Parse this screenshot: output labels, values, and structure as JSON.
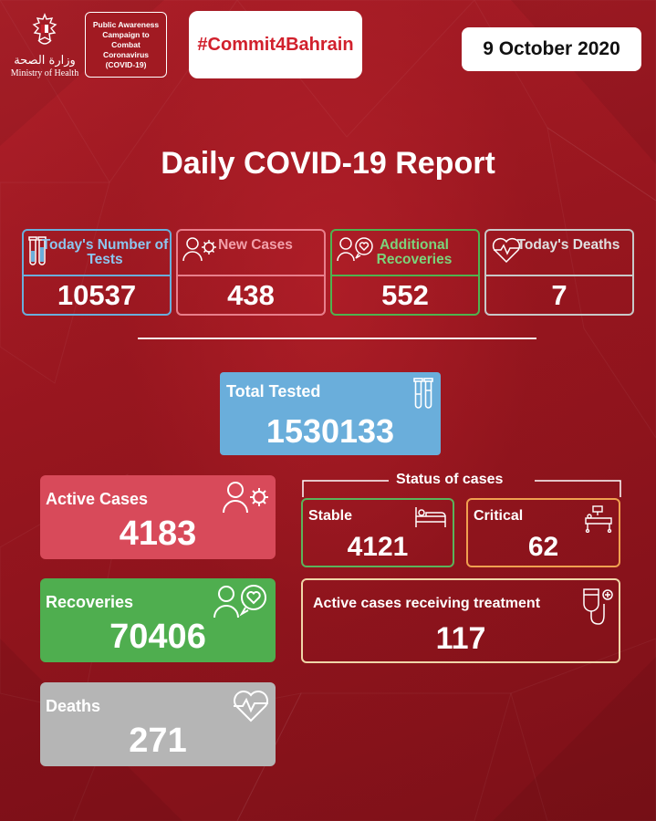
{
  "header": {
    "ministry_arabic": "وزارة الصحة",
    "ministry_english": "Ministry of Health",
    "campaign_text": "Public Awareness Campaign to Combat Coronavirus (COVID-19)",
    "hashtag": "#Commit4Bahrain",
    "date": "9 October 2020"
  },
  "title": "Daily COVID-19 Report",
  "today": {
    "tests": {
      "label": "Today's Number of Tests",
      "value": "10537",
      "color": "#6aaedb",
      "icon": "test-tubes-icon"
    },
    "new_cases": {
      "label": "New Cases",
      "value": "438",
      "color": "#e87f8c",
      "icon": "person-virus-icon"
    },
    "recoveries": {
      "label": "Additional Recoveries",
      "value": "552",
      "color": "#4fb34f",
      "icon": "people-heart-icon"
    },
    "deaths": {
      "label": "Today's Deaths",
      "value": "7",
      "color": "#c8c8c8",
      "icon": "heartbeat-icon"
    }
  },
  "total_tested": {
    "label": "Total Tested",
    "value": "1530133",
    "color": "#6aaedb"
  },
  "active_cases": {
    "label": "Active Cases",
    "value": "4183",
    "color": "#d84a5a"
  },
  "recoveries_total": {
    "label": "Recoveries",
    "value": "70406",
    "color": "#4fae4f"
  },
  "deaths_total": {
    "label": "Deaths",
    "value": "271",
    "color": "#b5b5b5"
  },
  "status": {
    "title": "Status of cases",
    "stable": {
      "label": "Stable",
      "value": "4121",
      "color": "#5bb35b",
      "icon": "bed-icon"
    },
    "critical": {
      "label": "Critical",
      "value": "62",
      "color": "#f0a050",
      "icon": "hospital-bed-icon"
    },
    "treatment": {
      "label": "Active cases receiving treatment",
      "value": "117",
      "color": "#f0d6a8",
      "icon": "iv-drip-icon"
    }
  }
}
